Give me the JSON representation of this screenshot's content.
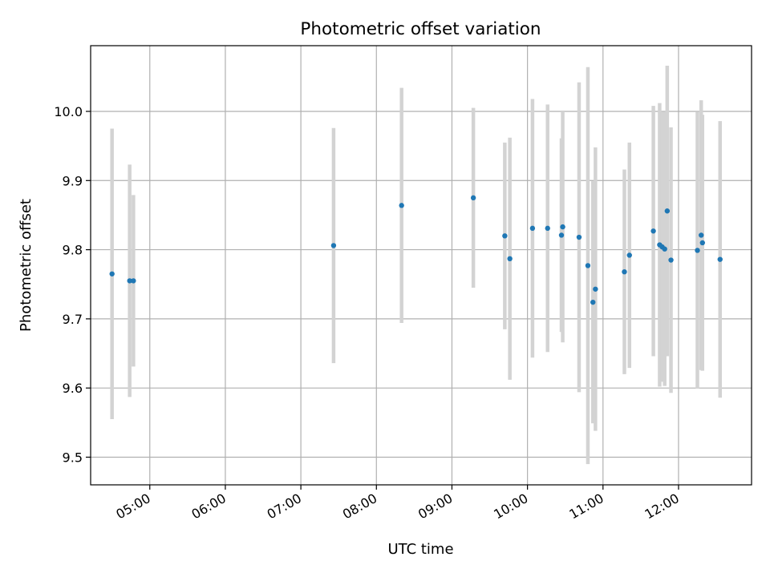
{
  "chart_data": {
    "type": "scatter",
    "title": "Photometric offset variation",
    "xlabel": "UTC time",
    "ylabel": "Photometric offset",
    "xlim": [
      "04:13",
      "12:58"
    ],
    "ylim": [
      9.46,
      10.095
    ],
    "x_ticks": [
      "05:00",
      "06:00",
      "07:00",
      "08:00",
      "09:00",
      "10:00",
      "11:00",
      "12:00"
    ],
    "y_ticks": [
      9.5,
      9.6,
      9.7,
      9.8,
      9.9,
      10.0
    ],
    "grid": true,
    "legend": "none",
    "marker_color": "#1f77b4",
    "errorbar_color": "#d3d3d3",
    "points": [
      {
        "time": "04:30",
        "y": 9.765,
        "yerr": 0.21
      },
      {
        "time": "04:44",
        "y": 9.755,
        "yerr": 0.168
      },
      {
        "time": "04:47",
        "y": 9.755,
        "yerr": 0.124
      },
      {
        "time": "07:26",
        "y": 9.806,
        "yerr": 0.17
      },
      {
        "time": "08:20",
        "y": 9.864,
        "yerr": 0.17
      },
      {
        "time": "09:17",
        "y": 9.875,
        "yerr": 0.13
      },
      {
        "time": "09:42",
        "y": 9.82,
        "yerr": 0.135
      },
      {
        "time": "09:46",
        "y": 9.787,
        "yerr": 0.175
      },
      {
        "time": "10:04",
        "y": 9.831,
        "yerr": 0.187
      },
      {
        "time": "10:16",
        "y": 9.831,
        "yerr": 0.179
      },
      {
        "time": "10:27",
        "y": 9.821,
        "yerr": 0.14
      },
      {
        "time": "10:28",
        "y": 9.833,
        "yerr": 0.167
      },
      {
        "time": "10:41",
        "y": 9.818,
        "yerr": 0.224
      },
      {
        "time": "10:48",
        "y": 9.777,
        "yerr": 0.287
      },
      {
        "time": "10:52",
        "y": 9.724,
        "yerr": 0.175
      },
      {
        "time": "10:54",
        "y": 9.743,
        "yerr": 0.205
      },
      {
        "time": "11:17",
        "y": 9.768,
        "yerr": 0.148
      },
      {
        "time": "11:21",
        "y": 9.792,
        "yerr": 0.163
      },
      {
        "time": "11:40",
        "y": 9.827,
        "yerr": 0.181
      },
      {
        "time": "11:45",
        "y": 9.807,
        "yerr": 0.205
      },
      {
        "time": "11:47",
        "y": 9.804,
        "yerr": 0.195
      },
      {
        "time": "11:49",
        "y": 9.801,
        "yerr": 0.198
      },
      {
        "time": "11:51",
        "y": 9.856,
        "yerr": 0.21
      },
      {
        "time": "11:54",
        "y": 9.785,
        "yerr": 0.192
      },
      {
        "time": "12:15",
        "y": 9.799,
        "yerr": 0.2
      },
      {
        "time": "12:18",
        "y": 9.821,
        "yerr": 0.195
      },
      {
        "time": "12:19",
        "y": 9.81,
        "yerr": 0.185
      },
      {
        "time": "12:33",
        "y": 9.786,
        "yerr": 0.2
      }
    ]
  }
}
